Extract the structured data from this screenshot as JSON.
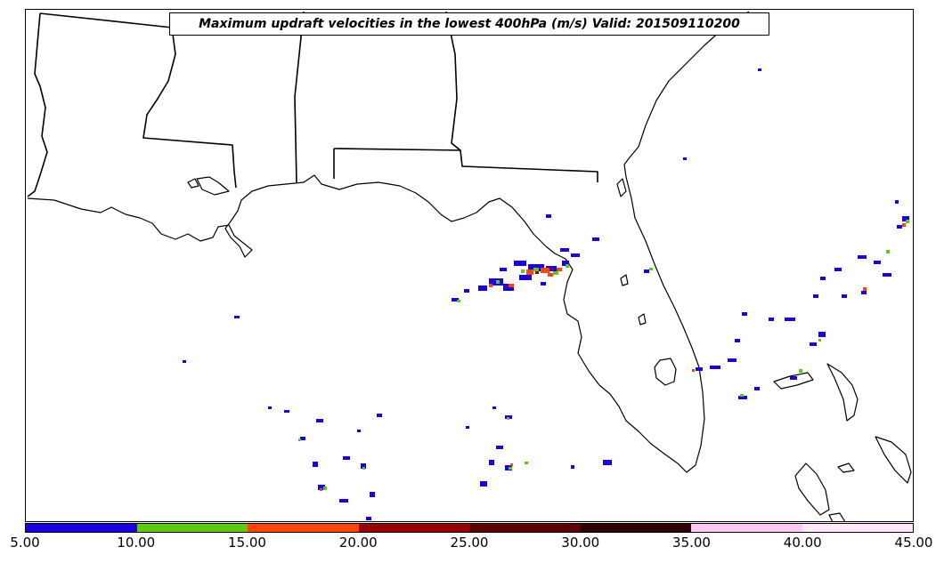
{
  "title": "Maximum updraft velocities in the lowest 400hPa (m/s) Valid: 201509110200",
  "colorbar": {
    "ticks": [
      "5.00",
      "10.00",
      "15.00",
      "20.00",
      "25.00",
      "30.00",
      "35.00",
      "40.00",
      "45.00"
    ],
    "colors": [
      "#1800e0",
      "#5ccc10",
      "#ff4500",
      "#990000",
      "#5e0000",
      "#2e0000",
      "#ffc8f5",
      "#ffe8fa"
    ]
  },
  "palette": {
    "blue": "#1800e0",
    "green": "#5ccc10",
    "orange": "#ff4500",
    "darkred": "#990000",
    "coast": "#000000"
  }
}
